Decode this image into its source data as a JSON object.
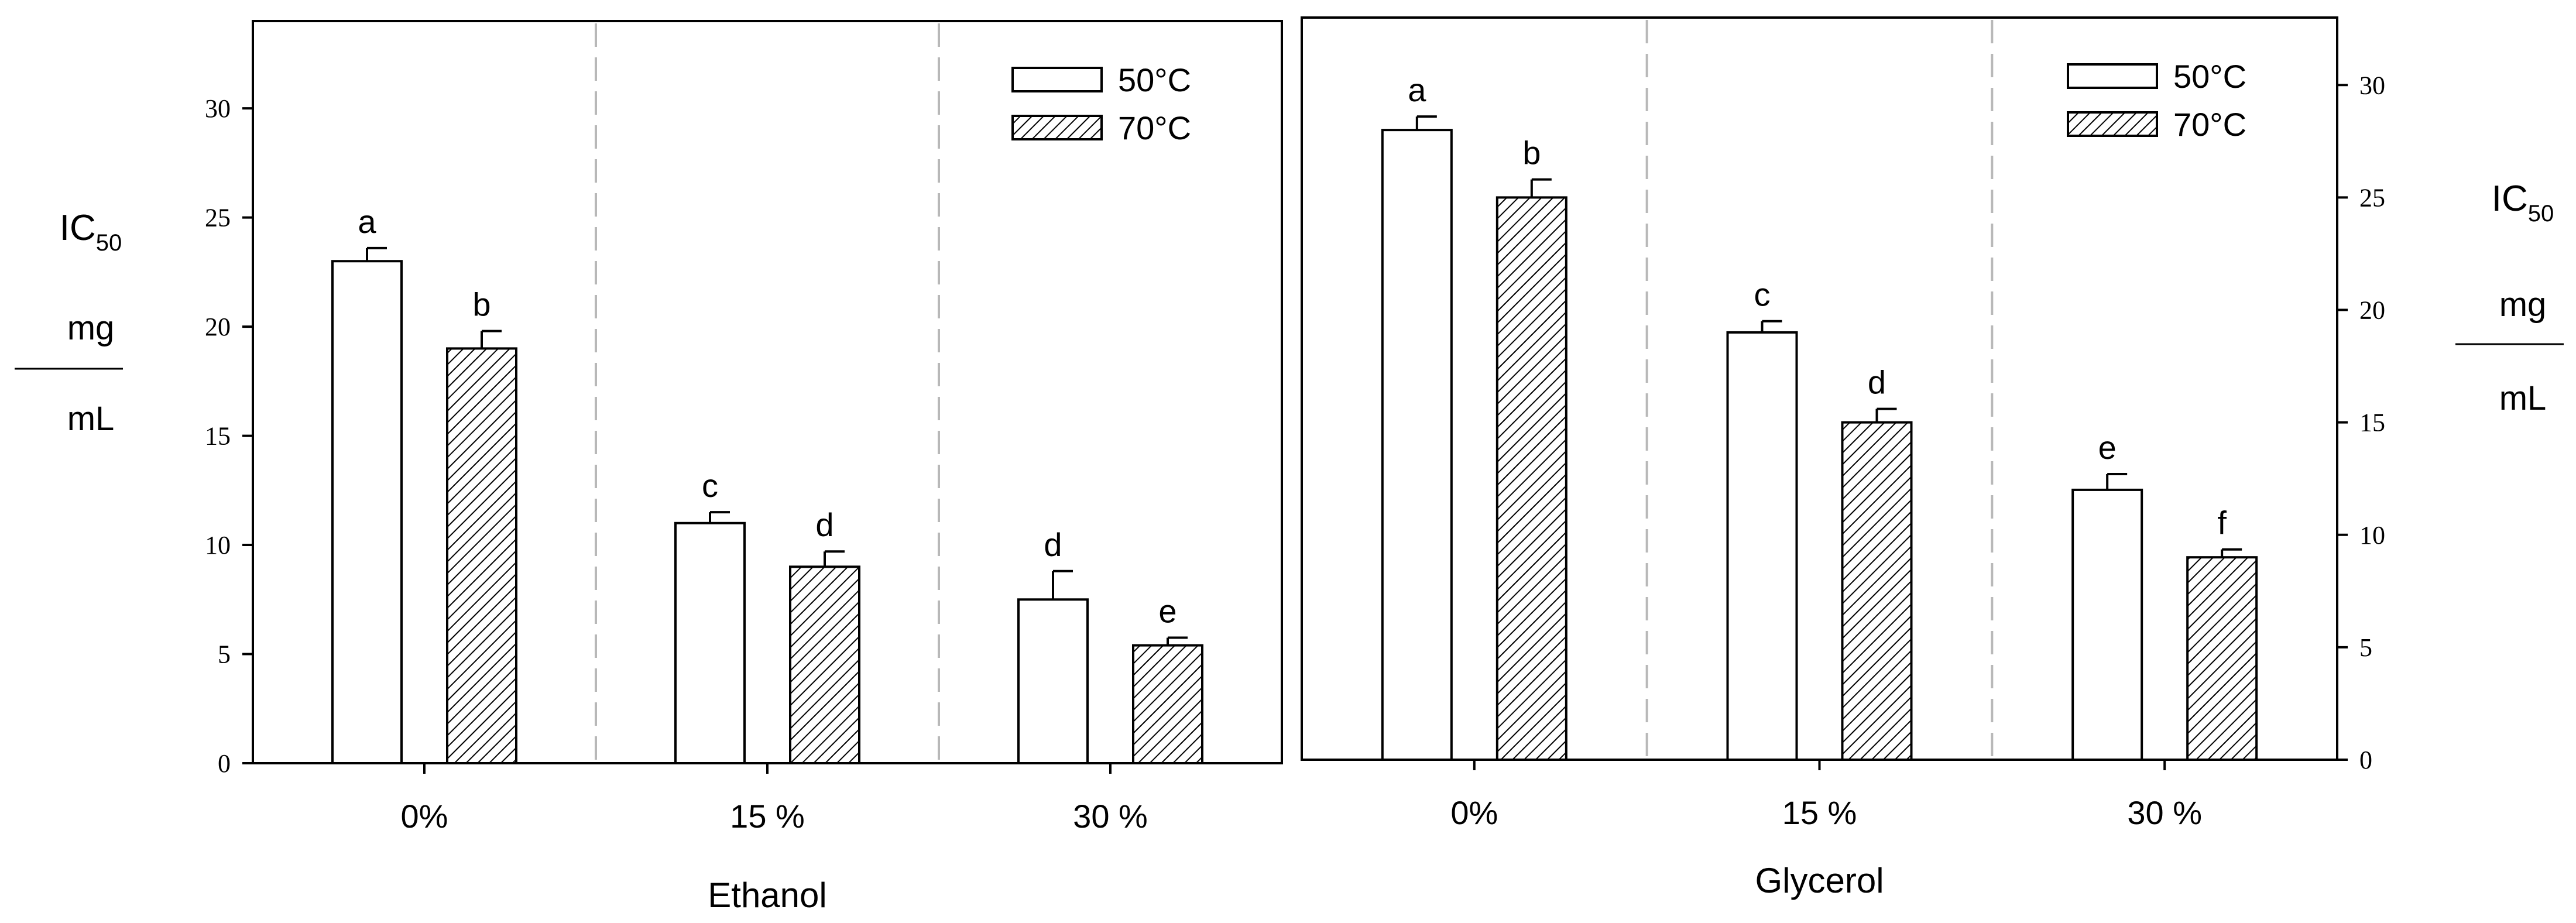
{
  "chart_data": [
    {
      "type": "bar",
      "xlabel": "Ethanol",
      "ylabel": "IC50 mg/mL",
      "ylabel_parts": {
        "main": "IC",
        "sub": "50",
        "num": "mg",
        "den": "mL"
      },
      "categories": [
        "0%",
        "15 %",
        "30 %"
      ],
      "ylim": [
        0,
        34
      ],
      "yticks": [
        0,
        5,
        10,
        15,
        20,
        25,
        30
      ],
      "y_axis_side": "left",
      "legend_position": "top-right",
      "series": [
        {
          "name": "50°C",
          "fill": "white",
          "values": [
            23.0,
            11.0,
            7.5
          ],
          "errors": [
            0.6,
            0.5,
            1.3
          ],
          "letters": [
            "a",
            "c",
            "d"
          ]
        },
        {
          "name": "70°C",
          "fill": "hatched",
          "values": [
            19.0,
            9.0,
            5.4
          ],
          "errors": [
            0.8,
            0.7,
            0.35
          ],
          "letters": [
            "b",
            "d",
            "e"
          ]
        }
      ]
    },
    {
      "type": "bar",
      "xlabel": "Glycerol",
      "ylabel": "IC50 mg/mL",
      "ylabel_parts": {
        "main": "IC",
        "sub": "50",
        "num": "mg",
        "den": "mL"
      },
      "categories": [
        "0%",
        "15 %",
        "30 %"
      ],
      "ylim": [
        0,
        33
      ],
      "yticks": [
        0,
        5,
        10,
        15,
        20,
        25,
        30
      ],
      "y_axis_side": "right",
      "legend_position": "top-right",
      "series": [
        {
          "name": "50°C",
          "fill": "white",
          "values": [
            28.0,
            19.0,
            12.0
          ],
          "errors": [
            0.6,
            0.5,
            0.7
          ],
          "letters": [
            "a",
            "c",
            "e"
          ]
        },
        {
          "name": "70°C",
          "fill": "hatched",
          "values": [
            25.0,
            15.0,
            9.0
          ],
          "errors": [
            0.8,
            0.6,
            0.35
          ],
          "letters": [
            "b",
            "d",
            "f"
          ]
        }
      ]
    }
  ]
}
